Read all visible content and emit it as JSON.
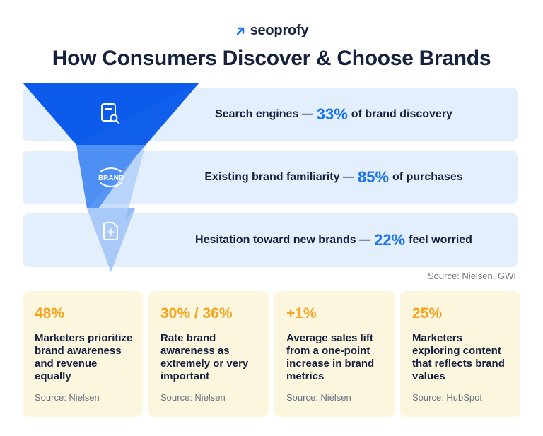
{
  "brand": {
    "logo_text": "seoprofy",
    "logo_color": "#1a73f0"
  },
  "title": "How Consumers Discover & Choose Brands",
  "funnel": {
    "stages": [
      {
        "icon": "search-document-icon",
        "lead": "Search engines —",
        "percent": "33%",
        "tail": "of brand discovery"
      },
      {
        "icon": "brand-badge-icon",
        "icon_text": "BRAND",
        "lead": "Existing brand familiarity —",
        "percent": "85%",
        "tail": "of purchases"
      },
      {
        "icon": "add-document-icon",
        "lead": "Hesitation toward new brands —",
        "percent": "22%",
        "tail": "feel worried"
      }
    ],
    "source": "Source: Nielsen, GWI",
    "colors": {
      "top": "#0d5bea",
      "middle": "#4e8ff3",
      "bottom": "#a9c9f8",
      "band": "#e4effd",
      "percent": "#1a73f0"
    }
  },
  "cards": [
    {
      "stat": "48%",
      "description": "Marketers prioritize brand awareness and revenue equally",
      "source": "Source: Nielsen"
    },
    {
      "stat": "30% / 36%",
      "description": "Rate brand awareness as extremely or very important",
      "source": "Source: Nielsen"
    },
    {
      "stat": "+1%",
      "description": "Average sales lift from a one-point increase in brand metrics",
      "source": "Source: Nielsen"
    },
    {
      "stat": "25%",
      "description": "Marketers exploring content that reflects brand values",
      "source": "Source: HubSpot"
    }
  ],
  "card_colors": {
    "background": "#fdf6df",
    "stat": "#f5a31a"
  }
}
